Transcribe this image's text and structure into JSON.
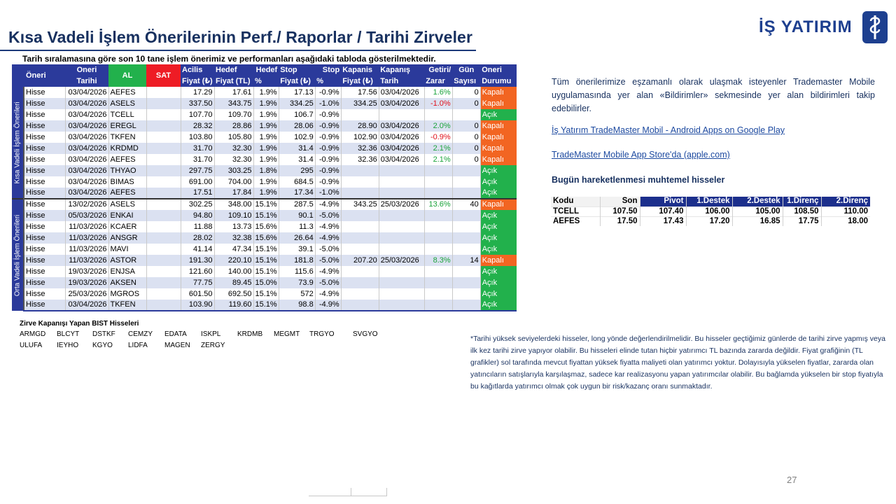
{
  "header": {
    "title": "Kısa Vadeli İşlem Önerilerinin Perf./ Raporlar / Tarihi Zirveler",
    "logo_text": "İŞ YATIRIM",
    "subtitle": "Tarih sıralamasına göre son 10 tane işlem önerimiz ve performanları aşağıdaki tabloda gösterilmektedir."
  },
  "table": {
    "headers": {
      "oneri": "Öneri",
      "tarih1": "Oneri",
      "tarih2": "Tarihi",
      "al": "AL",
      "sat": "SAT",
      "acilis1": "Acilis",
      "acilis2": "Fiyat (₺)",
      "hedef1": "Hedef",
      "hedef2": "Fiyat (TL)",
      "hedefp1": "Hedef",
      "hedefp2": "%",
      "stop1": "Stop",
      "stop2": "Fiyat (₺)",
      "stopp1": "Stop",
      "stopp2": "%",
      "kapanis1": "Kapanis",
      "kapanis2": "Fiyat (₺)",
      "kapanist1": "Kapanış",
      "kapanist2": "Tarih",
      "getiri1": "Getiri/",
      "getiri2": "Zarar",
      "gun1": "Gün",
      "gun2": "Sayısı",
      "durum1": "Oneri",
      "durum2": "Durumu"
    },
    "group_labels": [
      "Kısa Vadeli İşlem Önerileri",
      "Orta Vadeli İşlem Önerileri"
    ],
    "short_rows": [
      {
        "tip": "Hisse",
        "tarih": "03/04/2026",
        "kod": "AEFES",
        "acilis": "17.29",
        "hedef": "17.61",
        "hedef_p": "1.9%",
        "stop": "17.13",
        "stop_p": "-0.9%",
        "kapanis": "17.56",
        "kapanis_tarih": "03/04/2026",
        "getiri": "1.6%",
        "gun": "0",
        "durum": "Kapalı"
      },
      {
        "tip": "Hisse",
        "tarih": "03/04/2026",
        "kod": "ASELS",
        "acilis": "337.50",
        "hedef": "343.75",
        "hedef_p": "1.9%",
        "stop": "334.25",
        "stop_p": "-1.0%",
        "kapanis": "334.25",
        "kapanis_tarih": "03/04/2026",
        "getiri": "-1.0%",
        "gun": "0",
        "durum": "Kapalı"
      },
      {
        "tip": "Hisse",
        "tarih": "03/04/2026",
        "kod": "TCELL",
        "acilis": "107.70",
        "hedef": "109.70",
        "hedef_p": "1.9%",
        "stop": "106.7",
        "stop_p": "-0.9%",
        "kapanis": "",
        "kapanis_tarih": "",
        "getiri": "",
        "gun": "",
        "durum": "Açık"
      },
      {
        "tip": "Hisse",
        "tarih": "03/04/2026",
        "kod": "EREGL",
        "acilis": "28.32",
        "hedef": "28.86",
        "hedef_p": "1.9%",
        "stop": "28.06",
        "stop_p": "-0.9%",
        "kapanis": "28.90",
        "kapanis_tarih": "03/04/2026",
        "getiri": "2.0%",
        "gun": "0",
        "durum": "Kapalı"
      },
      {
        "tip": "Hisse",
        "tarih": "03/04/2026",
        "kod": "TKFEN",
        "acilis": "103.80",
        "hedef": "105.80",
        "hedef_p": "1.9%",
        "stop": "102.9",
        "stop_p": "-0.9%",
        "kapanis": "102.90",
        "kapanis_tarih": "03/04/2026",
        "getiri": "-0.9%",
        "gun": "0",
        "durum": "Kapalı"
      },
      {
        "tip": "Hisse",
        "tarih": "03/04/2026",
        "kod": "KRDMD",
        "acilis": "31.70",
        "hedef": "32.30",
        "hedef_p": "1.9%",
        "stop": "31.4",
        "stop_p": "-0.9%",
        "kapanis": "32.36",
        "kapanis_tarih": "03/04/2026",
        "getiri": "2.1%",
        "gun": "0",
        "durum": "Kapalı"
      },
      {
        "tip": "Hisse",
        "tarih": "03/04/2026",
        "kod": "AEFES",
        "acilis": "31.70",
        "hedef": "32.30",
        "hedef_p": "1.9%",
        "stop": "31.4",
        "stop_p": "-0.9%",
        "kapanis": "32.36",
        "kapanis_tarih": "03/04/2026",
        "getiri": "2.1%",
        "gun": "0",
        "durum": "Kapalı"
      },
      {
        "tip": "Hisse",
        "tarih": "03/04/2026",
        "kod": "THYAO",
        "acilis": "297.75",
        "hedef": "303.25",
        "hedef_p": "1.8%",
        "stop": "295",
        "stop_p": "-0.9%",
        "kapanis": "",
        "kapanis_tarih": "",
        "getiri": "",
        "gun": "",
        "durum": "Açık"
      },
      {
        "tip": "Hisse",
        "tarih": "03/04/2026",
        "kod": "BIMAS",
        "acilis": "691.00",
        "hedef": "704.00",
        "hedef_p": "1.9%",
        "stop": "684.5",
        "stop_p": "-0.9%",
        "kapanis": "",
        "kapanis_tarih": "",
        "getiri": "",
        "gun": "",
        "durum": "Açık"
      },
      {
        "tip": "Hisse",
        "tarih": "03/04/2026",
        "kod": "AEFES",
        "acilis": "17.51",
        "hedef": "17.84",
        "hedef_p": "1.9%",
        "stop": "17.34",
        "stop_p": "-1.0%",
        "kapanis": "",
        "kapanis_tarih": "",
        "getiri": "",
        "gun": "",
        "durum": "Açık"
      }
    ],
    "mid_rows": [
      {
        "tip": "Hisse",
        "tarih": "13/02/2026",
        "kod": "ASELS",
        "acilis": "302.25",
        "hedef": "348.00",
        "hedef_p": "15.1%",
        "stop": "287.5",
        "stop_p": "-4.9%",
        "kapanis": "343.25",
        "kapanis_tarih": "25/03/2026",
        "getiri": "13.6%",
        "gun": "40",
        "durum": "Kapalı"
      },
      {
        "tip": "Hisse",
        "tarih": "05/03/2026",
        "kod": "ENKAI",
        "acilis": "94.80",
        "hedef": "109.10",
        "hedef_p": "15.1%",
        "stop": "90.1",
        "stop_p": "-5.0%",
        "kapanis": "",
        "kapanis_tarih": "",
        "getiri": "",
        "gun": "",
        "durum": "Açık"
      },
      {
        "tip": "Hisse",
        "tarih": "11/03/2026",
        "kod": "KCAER",
        "acilis": "11.88",
        "hedef": "13.73",
        "hedef_p": "15.6%",
        "stop": "11.3",
        "stop_p": "-4.9%",
        "kapanis": "",
        "kapanis_tarih": "",
        "getiri": "",
        "gun": "",
        "durum": "Açık"
      },
      {
        "tip": "Hisse",
        "tarih": "11/03/2026",
        "kod": "ANSGR",
        "acilis": "28.02",
        "hedef": "32.38",
        "hedef_p": "15.6%",
        "stop": "26.64",
        "stop_p": "-4.9%",
        "kapanis": "",
        "kapanis_tarih": "",
        "getiri": "",
        "gun": "",
        "durum": "Açık"
      },
      {
        "tip": "Hisse",
        "tarih": "11/03/2026",
        "kod": "MAVI",
        "acilis": "41.14",
        "hedef": "47.34",
        "hedef_p": "15.1%",
        "stop": "39.1",
        "stop_p": "-5.0%",
        "kapanis": "",
        "kapanis_tarih": "",
        "getiri": "",
        "gun": "",
        "durum": "Açık"
      },
      {
        "tip": "Hisse",
        "tarih": "11/03/2026",
        "kod": "ASTOR",
        "acilis": "191.30",
        "hedef": "220.10",
        "hedef_p": "15.1%",
        "stop": "181.8",
        "stop_p": "-5.0%",
        "kapanis": "207.20",
        "kapanis_tarih": "25/03/2026",
        "getiri": "8.3%",
        "gun": "14",
        "durum": "Kapalı"
      },
      {
        "tip": "Hisse",
        "tarih": "19/03/2026",
        "kod": "ENJSA",
        "acilis": "121.60",
        "hedef": "140.00",
        "hedef_p": "15.1%",
        "stop": "115.6",
        "stop_p": "-4.9%",
        "kapanis": "",
        "kapanis_tarih": "",
        "getiri": "",
        "gun": "",
        "durum": "Açık"
      },
      {
        "tip": "Hisse",
        "tarih": "19/03/2026",
        "kod": "AKSEN",
        "acilis": "77.75",
        "hedef": "89.45",
        "hedef_p": "15.0%",
        "stop": "73.9",
        "stop_p": "-5.0%",
        "kapanis": "",
        "kapanis_tarih": "",
        "getiri": "",
        "gun": "",
        "durum": "Açık"
      },
      {
        "tip": "Hisse",
        "tarih": "25/03/2026",
        "kod": "MGROS",
        "acilis": "601.50",
        "hedef": "692.50",
        "hedef_p": "15.1%",
        "stop": "572",
        "stop_p": "-4.9%",
        "kapanis": "",
        "kapanis_tarih": "",
        "getiri": "",
        "gun": "",
        "durum": "Açık"
      },
      {
        "tip": "Hisse",
        "tarih": "03/04/2026",
        "kod": "TKFEN",
        "acilis": "103.90",
        "hedef": "119.60",
        "hedef_p": "15.1%",
        "stop": "98.8",
        "stop_p": "-4.9%",
        "kapanis": "",
        "kapanis_tarih": "",
        "getiri": "",
        "gun": "",
        "durum": "Açık"
      }
    ]
  },
  "zirve": {
    "title": "Zirve Kapanışı Yapan BIST Hisseleri",
    "row1": [
      "ARMGD",
      "BLCYT",
      "DSTKF",
      "CEMZY",
      "EDATA",
      "ISKPL",
      "KRDMB",
      "MEGMT",
      "TRGYO",
      "SVGYO"
    ],
    "row2": [
      "ULUFA",
      "IEYHO",
      "KGYO",
      "LIDFA",
      "MAGEN",
      "ZERGY"
    ]
  },
  "right": {
    "info": "Tüm önerilerimize eşzamanlı olarak ulaşmak isteyenler Trademaster Mobile uygulamasında yer alan «Bildirimler» sekmesinde yer alan bildirimleri takip edebilirler.",
    "link1": "İş Yatırım TradeMaster Mobil - Android Apps on Google Play",
    "link2": "TradeMaster Mobile App Store'da (apple.com)",
    "bugun": "Bugün hareketlenmesi muhtemel hisseler"
  },
  "pivot": {
    "headers": [
      "Kodu",
      "Son",
      "Pivot",
      "1.Destek",
      "2.Destek",
      "1.Direnç",
      "2.Direnç"
    ],
    "rows": [
      [
        "TCELL",
        "107.50",
        "107.40",
        "106.00",
        "105.00",
        "108.50",
        "110.00"
      ],
      [
        "AEFES",
        "17.50",
        "17.43",
        "17.20",
        "16.85",
        "17.75",
        "18.00"
      ]
    ]
  },
  "note": "*Tarihi yüksek seviyelerdeki hisseler, long yönde değerlendirilmelidir. Bu hisseler geçtiğimiz günlerde de tarihi zirve yapmış veya ilk kez tarihi zirve yapıyor olabilir. Bu hisseleri elinde tutan hiçbir yatırımcı TL bazında zararda değildir. Fiyat grafiğinin (TL grafikler) sol tarafında mevcut fiyattan yüksek fiyatta maliyeti olan yatırımcı yoktur. Dolayısıyla yükselen fiyatlar, zararda olan yatıncıların satışlarıyla karşılaşmaz, sadece kar realizasyonu yapan yatırımcılar olabilir. Bu bağlamda yükselen bir stop fiyatıyla bu kağıtlarda yatırımcı olmak çok uygun bir risk/kazanç oranı sunmaktadır.",
  "page_number": "27",
  "colors": {
    "header_blue": "#2b3a9b",
    "al_green": "#22b14c",
    "sat_red": "#ee1c25",
    "acik_green": "#22b14c",
    "kapali_orange": "#f26522",
    "row_shade": "#dbe1f1",
    "title_navy": "#17305f"
  }
}
